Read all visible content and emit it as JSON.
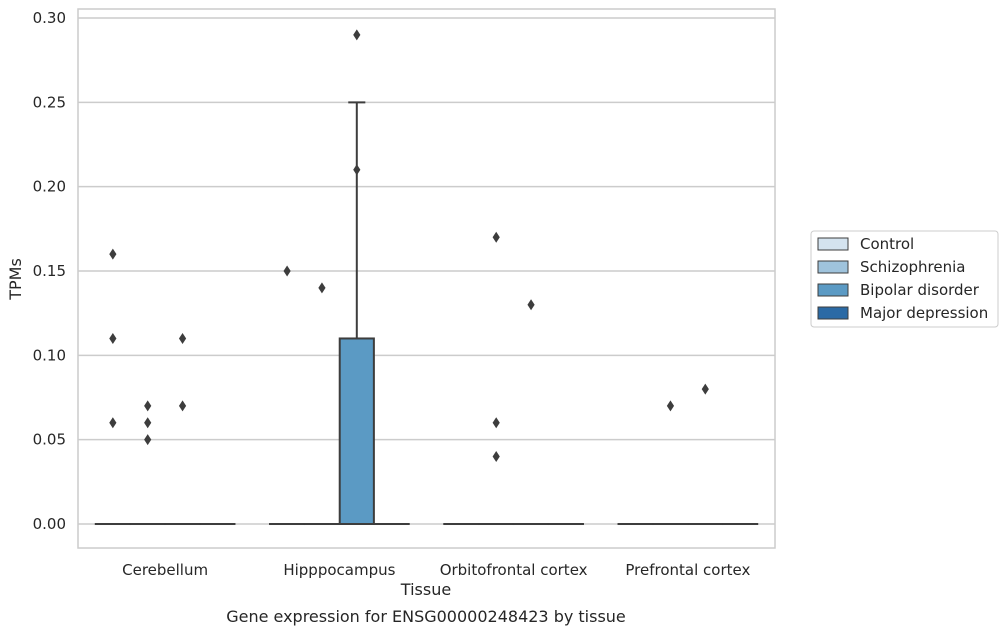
{
  "chart_data": {
    "type": "box",
    "title": "Gene expression for ENSG00000248423 by tissue",
    "xlabel": "Tissue",
    "ylabel": "TPMs",
    "ylim": [
      -0.015,
      0.3
    ],
    "yticks": [
      0.0,
      0.05,
      0.1,
      0.15,
      0.2,
      0.25,
      0.3
    ],
    "ytick_labels": [
      "0.00",
      "0.05",
      "0.10",
      "0.15",
      "0.20",
      "0.25",
      "0.30"
    ],
    "grid": true,
    "legend_position": "right",
    "categories": [
      "Cerebellum",
      "Hipppocampus",
      "Orbitofrontal cortex",
      "Prefrontal cortex"
    ],
    "series": [
      {
        "name": "Control",
        "color": "#d4e3ef",
        "boxes": [
          {
            "q1": 0,
            "median": 0,
            "q3": 0,
            "whisker_low": 0,
            "whisker_high": 0,
            "outliers": [
              0.16,
              0.11,
              0.06
            ]
          },
          {
            "q1": 0,
            "median": 0,
            "q3": 0,
            "whisker_low": 0,
            "whisker_high": 0,
            "outliers": [
              0.15
            ]
          },
          {
            "q1": 0,
            "median": 0,
            "q3": 0,
            "whisker_low": 0,
            "whisker_high": 0,
            "outliers": []
          },
          {
            "q1": 0,
            "median": 0,
            "q3": 0,
            "whisker_low": 0,
            "whisker_high": 0,
            "outliers": []
          }
        ]
      },
      {
        "name": "Schizophrenia",
        "color": "#9fc3dc",
        "boxes": [
          {
            "q1": 0,
            "median": 0,
            "q3": 0,
            "whisker_low": 0,
            "whisker_high": 0,
            "outliers": [
              0.07,
              0.06,
              0.05
            ]
          },
          {
            "q1": 0,
            "median": 0,
            "q3": 0,
            "whisker_low": 0,
            "whisker_high": 0,
            "outliers": [
              0.14
            ]
          },
          {
            "q1": 0,
            "median": 0,
            "q3": 0,
            "whisker_low": 0,
            "whisker_high": 0,
            "outliers": [
              0.17,
              0.06,
              0.04
            ]
          },
          {
            "q1": 0,
            "median": 0,
            "q3": 0,
            "whisker_low": 0,
            "whisker_high": 0,
            "outliers": [
              0.07
            ]
          }
        ]
      },
      {
        "name": "Bipolar disorder",
        "color": "#5b9ac4",
        "boxes": [
          {
            "q1": 0,
            "median": 0,
            "q3": 0,
            "whisker_low": 0,
            "whisker_high": 0,
            "outliers": [
              0.11,
              0.07
            ]
          },
          {
            "q1": 0,
            "median": 0,
            "q3": 0.11,
            "whisker_low": 0,
            "whisker_high": 0.25,
            "outliers": [
              0.29,
              0.21
            ]
          },
          {
            "q1": 0,
            "median": 0,
            "q3": 0,
            "whisker_low": 0,
            "whisker_high": 0,
            "outliers": [
              0.13
            ]
          },
          {
            "q1": 0,
            "median": 0,
            "q3": 0,
            "whisker_low": 0,
            "whisker_high": 0,
            "outliers": [
              0.08
            ]
          }
        ]
      },
      {
        "name": "Major depression",
        "color": "#2b6aa5",
        "boxes": [
          {
            "q1": 0,
            "median": 0,
            "q3": 0,
            "whisker_low": 0,
            "whisker_high": 0,
            "outliers": []
          },
          {
            "q1": 0,
            "median": 0,
            "q3": 0,
            "whisker_low": 0,
            "whisker_high": 0,
            "outliers": []
          },
          {
            "q1": 0,
            "median": 0,
            "q3": 0,
            "whisker_low": 0,
            "whisker_high": 0,
            "outliers": []
          },
          {
            "q1": 0,
            "median": 0,
            "q3": 0,
            "whisker_low": 0,
            "whisker_high": 0,
            "outliers": []
          }
        ]
      }
    ]
  }
}
